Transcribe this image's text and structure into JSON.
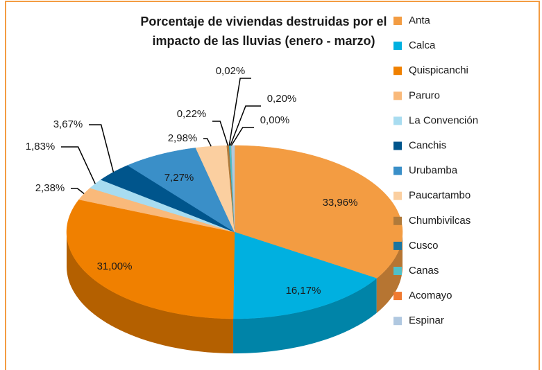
{
  "chart_data": {
    "type": "pie3d",
    "title": [
      "Porcentaje de viviendas destruidas por el",
      "impacto de las lluvias (enero - marzo)"
    ],
    "categories": [
      "Anta",
      "Calca",
      "Quispicanchi",
      "Paruro",
      "La Convención",
      "Canchis",
      "Urubamba",
      "Paucartambo",
      "Chumbivilcas",
      "Cusco",
      "Canas",
      "Acomayo",
      "Espinar"
    ],
    "values": [
      33.96,
      16.17,
      31.0,
      2.38,
      1.83,
      3.67,
      7.27,
      2.98,
      0.22,
      0.02,
      0.2,
      0.0,
      0.3
    ],
    "value_labels": [
      "33,96%",
      "16,17%",
      "31,00%",
      "2,38%",
      "1,83%",
      "3,67%",
      "7,27%",
      "2,98%",
      "0,22%",
      "0,02%",
      "0,20%",
      "0,00%",
      null
    ],
    "colors": [
      "#f39c42",
      "#00b0e0",
      "#f08000",
      "#f9b97a",
      "#a8dcf0",
      "#00558c",
      "#3a8fc8",
      "#fbcfa0",
      "#b07a3a",
      "#1a75a0",
      "#4fc0c8",
      "#f07a30",
      "#b0c8e0"
    ],
    "legend": "right"
  }
}
